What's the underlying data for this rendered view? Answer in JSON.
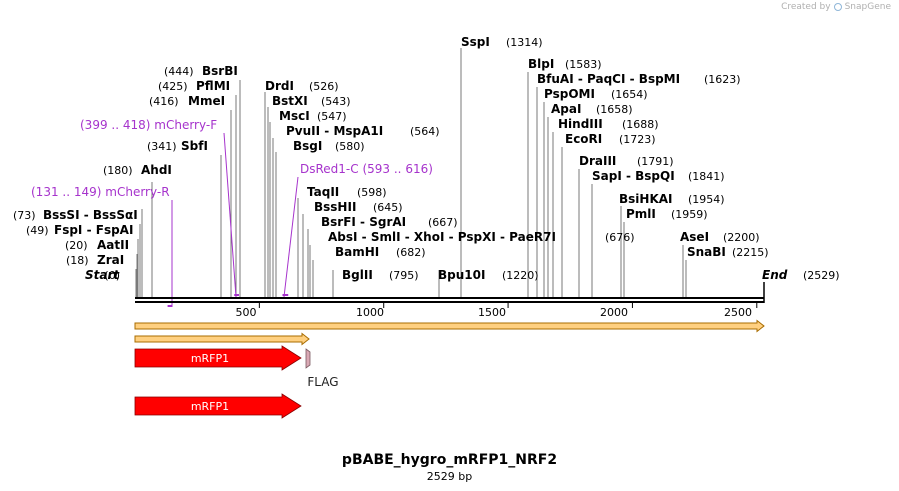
{
  "credit": {
    "prefix": "Created by",
    "brand": "SnapGene"
  },
  "title": "pBABE_hygro_mRFP1_NRF2",
  "subtitle": "2529 bp",
  "sequence_length": 2529,
  "ruler_ticks": [
    "500",
    "1000",
    "1500",
    "2000",
    "2500"
  ],
  "ends": {
    "start_label": "Start",
    "start_pos": "(0)",
    "end_label": "End",
    "end_pos": "(2529)"
  },
  "sites": [
    {
      "name": "ZraI",
      "pos": "(18)"
    },
    {
      "name": "AatII",
      "pos": "(20)"
    },
    {
      "name": "FspI",
      "name2": "FspAI",
      "pos": "(49)"
    },
    {
      "name": "BssSI",
      "name2": "BssSαI",
      "pos": "(73)"
    },
    {
      "name": "AhdI",
      "pos": "(180)"
    },
    {
      "name": "SbfI",
      "pos": "(341)"
    },
    {
      "name": "MmeI",
      "pos": "(416)"
    },
    {
      "name": "PflMI",
      "pos": "(425)"
    },
    {
      "name": "BsrBI",
      "pos": "(444)"
    },
    {
      "name": "DrdI",
      "pos": "(526)"
    },
    {
      "name": "BstXI",
      "pos": "(543)"
    },
    {
      "name": "MscI",
      "pos": "(547)"
    },
    {
      "name": "PvuII",
      "name2": "MspA1I",
      "pos": "(564)"
    },
    {
      "name": "BsgI",
      "pos": "(580)"
    },
    {
      "name": "TaqII",
      "pos": "(598)"
    },
    {
      "name": "BssHII",
      "pos": "(645)"
    },
    {
      "name": "BsrFI",
      "name2": "SgrAI",
      "pos": "(667)"
    },
    {
      "name": "AbsI",
      "name2": "SmlI",
      "name3": "XhoI",
      "name4": "PspXI",
      "name5": "PaeR7I",
      "pos": "(676)"
    },
    {
      "name": "BamHI",
      "pos": "(682)"
    },
    {
      "name": "BglII",
      "pos": "(795)"
    },
    {
      "name": "Bpu10I",
      "pos": "(1220)"
    },
    {
      "name": "SspI",
      "pos": "(1314)"
    },
    {
      "name": "BlpI",
      "pos": "(1583)"
    },
    {
      "name": "BfuAI",
      "name2": "PaqCI",
      "name3": "BspMI",
      "pos": "(1623)"
    },
    {
      "name": "PspOMI",
      "pos": "(1654)"
    },
    {
      "name": "ApaI",
      "pos": "(1658)"
    },
    {
      "name": "HindIII",
      "pos": "(1688)"
    },
    {
      "name": "EcoRI",
      "pos": "(1723)"
    },
    {
      "name": "DraIII",
      "pos": "(1791)"
    },
    {
      "name": "SapI",
      "name2": "BspQI",
      "pos": "(1841)"
    },
    {
      "name": "BsiHKAI",
      "pos": "(1954)"
    },
    {
      "name": "PmlI",
      "pos": "(1959)"
    },
    {
      "name": "AseI",
      "pos": "(2200)"
    },
    {
      "name": "SnaBI",
      "pos": "(2215)"
    }
  ],
  "primers": [
    {
      "range": "(399 .. 418)",
      "name": "mCherry-F",
      "start": 399,
      "end": 418
    },
    {
      "range": "(131 .. 149)",
      "name": "mCherry-R",
      "start": 131,
      "end": 149
    },
    {
      "range": "(593 .. 616)",
      "name": "DsRed1-C",
      "start": 593,
      "end": 616
    }
  ],
  "features": [
    {
      "label": "mRFP1",
      "start": 0,
      "end": 678
    },
    {
      "label": "FLAG",
      "start": 703,
      "end": 726
    },
    {
      "label": "mRFP1",
      "start": 0,
      "end": 678
    }
  ],
  "colors": {
    "primer": "#a633cc",
    "feature_arrow": "#ff0000",
    "flag": "#d9a8b4",
    "orf_fill": "#ffd080",
    "orf_stroke": "#a86c00",
    "backbone": "#000000",
    "site_line": "#7a7a7a"
  }
}
